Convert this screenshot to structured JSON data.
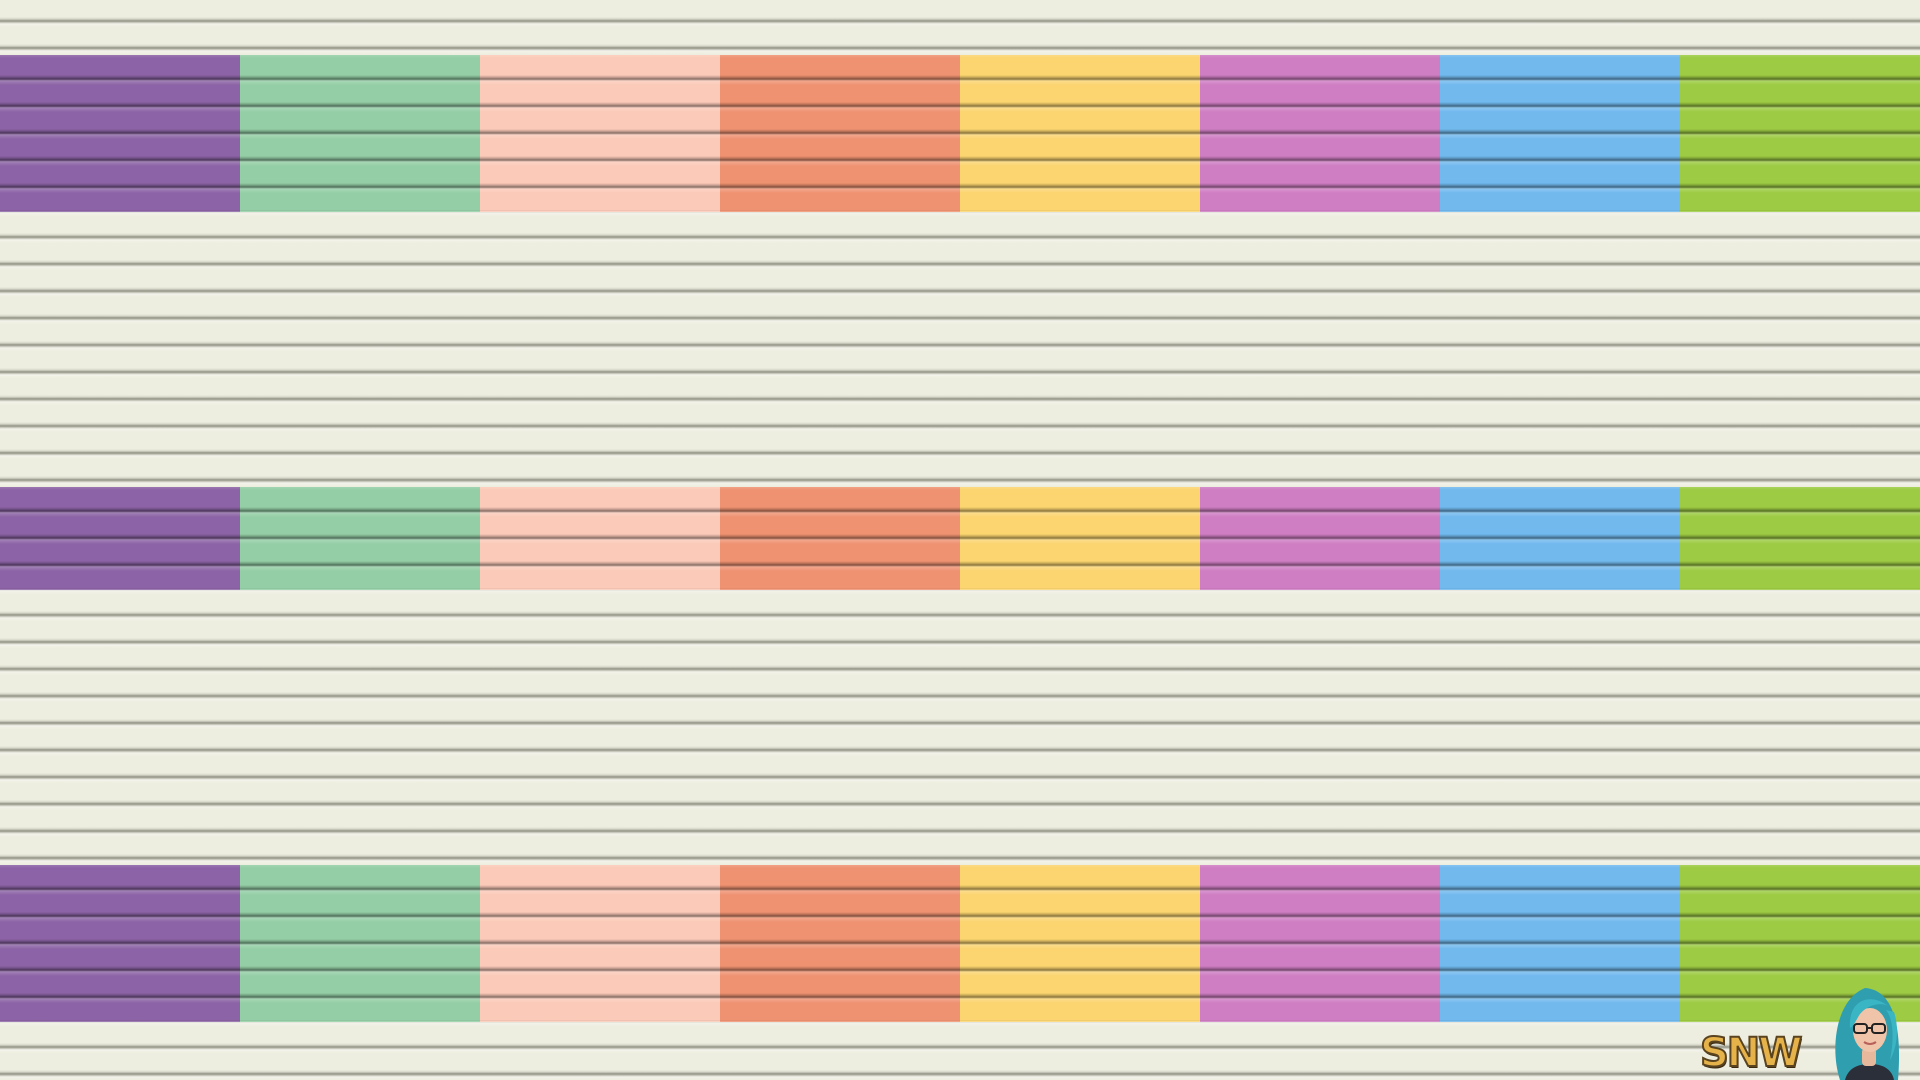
{
  "wallpaper": {
    "base_color": "#eeeee0",
    "slat_shadow_color": "#8d8d80",
    "stripe_colors": [
      {
        "name": "purple",
        "hex": "#8c63a6"
      },
      {
        "name": "mint-green",
        "hex": "#94cea6"
      },
      {
        "name": "peach",
        "hex": "#fbcab9"
      },
      {
        "name": "coral",
        "hex": "#ef9272"
      },
      {
        "name": "yellow",
        "hex": "#fcd570"
      },
      {
        "name": "orchid",
        "hex": "#cf7ec3"
      },
      {
        "name": "sky-blue",
        "hex": "#72b9ee"
      },
      {
        "name": "lime-green",
        "hex": "#9dcb43"
      }
    ],
    "bands": [
      "top",
      "middle",
      "bottom"
    ]
  },
  "watermark": {
    "text": "SNW",
    "text_color": "#e6b24a",
    "avatar_hair_color": "#3ab5c4"
  }
}
